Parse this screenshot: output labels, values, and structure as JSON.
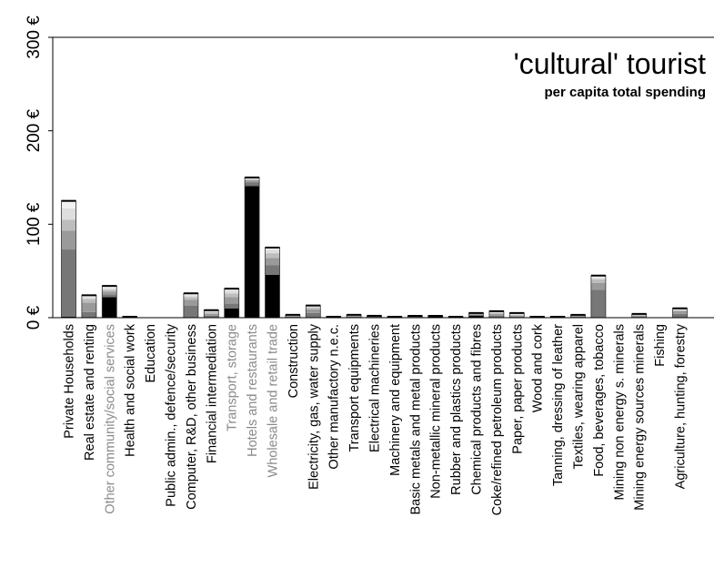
{
  "chart_data": {
    "type": "bar",
    "stacked": true,
    "title": "'cultural' tourist",
    "subtitle": "per capita total spending",
    "xlabel": "",
    "ylabel": "",
    "ylim": [
      0,
      300
    ],
    "yticks": [
      0,
      100,
      200,
      300
    ],
    "ytick_labels": [
      "0 €",
      "100 €",
      "200 €",
      "300 €"
    ],
    "grid": false,
    "legend": "none",
    "segment_colors": [
      "#000000",
      "#777777",
      "#9a9a9a",
      "#bdbdbd",
      "#dedede",
      "#f2f2f2"
    ],
    "categories": [
      "Private Households",
      "Real estate and renting",
      "Other community/social services",
      "Health and social work",
      "Education",
      "Public admin., defence/security",
      "Computer, R&D, other business",
      "Financial intermediation",
      "Transport, storage",
      "Hotels and restaurants",
      "Wholesale and retail trade",
      "Construction",
      "Electricity, gas, water supply",
      "Other manufactory n.e.c.",
      "Transport equipments",
      "Electrical machineries",
      "Machinery and equipment",
      "Basic metals and metal products",
      "Non-metallic mineral products",
      "Rubber and plastics products",
      "Chemical products and fibres",
      "Coke/refined petroleum products",
      "Paper, paper products",
      "Wood and cork",
      "Tanning, dressing of leather",
      "Textiles, wearing apparel",
      "Food, beverages, tobacco",
      "Mining non energy s. minerals",
      "Mining energy sources minerals",
      "Fishing",
      "Agriculture, hunting, forestry"
    ],
    "grey_labels": [
      2,
      8,
      9,
      10
    ],
    "totals": [
      125,
      24,
      34,
      1,
      0,
      0,
      26,
      8,
      31,
      150,
      75,
      3,
      13,
      1,
      3,
      2,
      1,
      2,
      2,
      1,
      5,
      7,
      5,
      1,
      1,
      3,
      45,
      0,
      4,
      0,
      10
    ],
    "series": [
      {
        "values": [
          1,
          0,
          22,
          0,
          0,
          0,
          0,
          0,
          10,
          141,
          46,
          0,
          0,
          0,
          0,
          0,
          0,
          0,
          1,
          0,
          2,
          0,
          0,
          0,
          0,
          0,
          0,
          0,
          0,
          0,
          0
        ]
      },
      {
        "values": [
          72,
          6,
          3,
          0,
          0,
          0,
          13,
          2,
          5,
          4,
          10,
          1,
          5,
          0,
          1,
          1,
          0,
          1,
          0,
          0,
          1,
          2,
          1,
          0,
          0,
          1,
          30,
          0,
          1,
          0,
          4
        ]
      },
      {
        "values": [
          20,
          10,
          3,
          0,
          0,
          0,
          6,
          2,
          7,
          2,
          8,
          1,
          4,
          0,
          1,
          0,
          0,
          0,
          0,
          0,
          1,
          2,
          1,
          0,
          0,
          1,
          7,
          0,
          1,
          0,
          3
        ]
      },
      {
        "values": [
          12,
          4,
          2,
          0,
          0,
          0,
          3,
          2,
          4,
          1,
          5,
          0,
          2,
          0,
          0,
          0,
          0,
          0,
          0,
          0,
          0,
          1,
          1,
          0,
          0,
          0,
          4,
          0,
          1,
          0,
          1
        ]
      },
      {
        "values": [
          12,
          2,
          2,
          0,
          0,
          0,
          2,
          1,
          3,
          1,
          4,
          0,
          1,
          0,
          0,
          0,
          0,
          0,
          0,
          0,
          0,
          1,
          1,
          0,
          0,
          0,
          2,
          0,
          0,
          0,
          1
        ]
      },
      {
        "values": [
          8,
          2,
          2,
          1,
          0,
          0,
          2,
          1,
          2,
          1,
          2,
          1,
          1,
          1,
          1,
          1,
          1,
          1,
          1,
          1,
          1,
          1,
          1,
          1,
          1,
          1,
          2,
          0,
          1,
          0,
          1
        ]
      }
    ]
  }
}
